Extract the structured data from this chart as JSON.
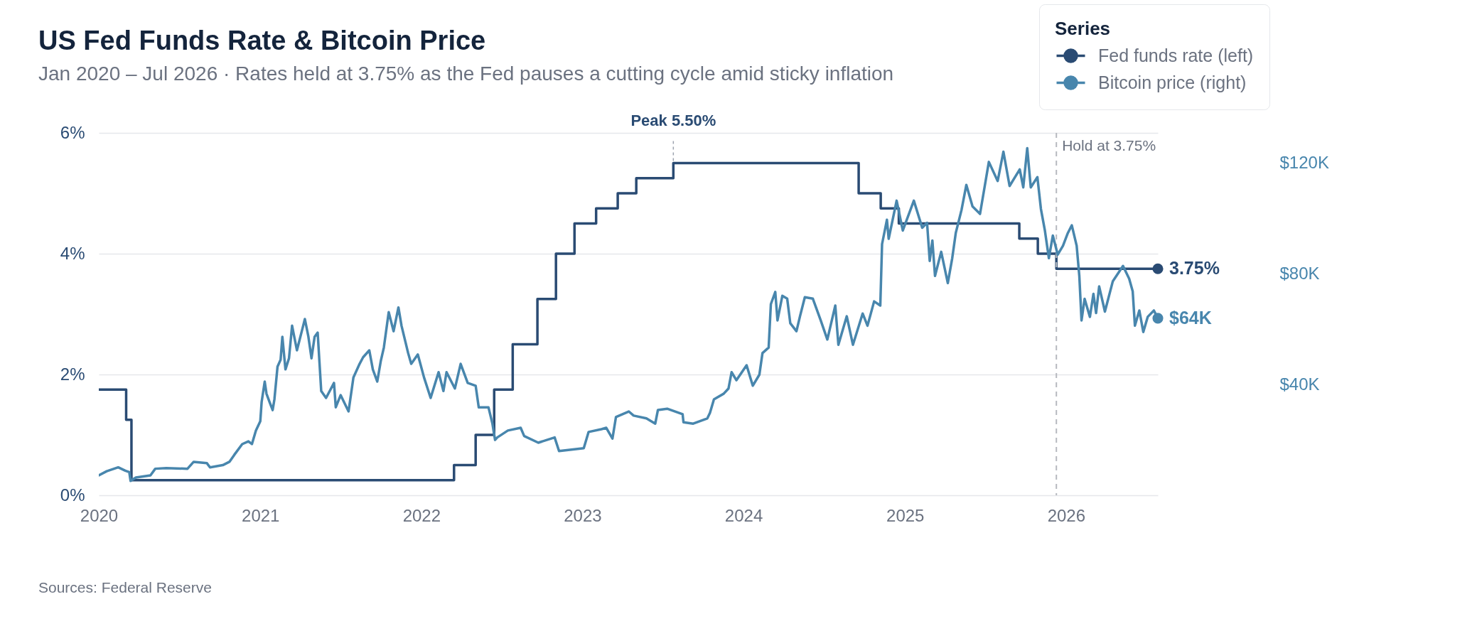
{
  "chart_data": {
    "type": "line",
    "title": "US Fed Funds Rate & Bitcoin Price",
    "subtitle": "Jan 2020 – Jul 2026 · Rates held at 3.75% as the Fed pauses a cutting cycle amid sticky inflation",
    "legend_title": "Series",
    "series": [
      {
        "name": "Fed funds rate (left)",
        "type": "step",
        "color": "#2a4b73",
        "x": [
          "2020-01-01",
          "2020-03-03",
          "2020-03-15",
          "2022-03-16",
          "2022-05-04",
          "2022-06-15",
          "2022-07-27",
          "2022-09-21",
          "2022-11-02",
          "2022-12-14",
          "2023-02-01",
          "2023-03-22",
          "2023-05-03",
          "2023-07-26",
          "2024-09-18",
          "2024-11-07",
          "2024-12-18",
          "2025-09-17",
          "2025-10-29",
          "2025-12-10",
          "2026-07-28"
        ],
        "values": [
          1.75,
          1.25,
          0.25,
          0.5,
          1.0,
          1.75,
          2.5,
          3.25,
          4.0,
          4.5,
          4.75,
          5.0,
          5.25,
          5.5,
          5.0,
          4.75,
          4.5,
          4.25,
          4.0,
          3.75,
          3.75
        ],
        "value_labels": [
          null,
          null,
          null,
          null,
          null,
          null,
          null,
          null,
          null,
          null,
          null,
          null,
          null,
          null,
          null,
          null,
          null,
          null,
          null,
          null,
          "3.75%"
        ]
      },
      {
        "name": "Bitcoin price (right)",
        "type": "line",
        "axis": "y2",
        "color": "#4886ad",
        "x": [
          "2020-01-01",
          "2020-01-19",
          "2020-02-14",
          "2020-03-01",
          "2020-03-10",
          "2020-03-13",
          "2020-03-25",
          "2020-04-27",
          "2020-05-08",
          "2020-06-02",
          "2020-07-20",
          "2020-08-03",
          "2020-09-02",
          "2020-09-09",
          "2020-10-08",
          "2020-10-23",
          "2020-11-03",
          "2020-11-21",
          "2020-12-05",
          "2020-12-13",
          "2020-12-22",
          "2021-01-01",
          "2021-01-04",
          "2021-01-11",
          "2021-01-15",
          "2021-01-22",
          "2021-01-29",
          "2021-02-02",
          "2021-02-09",
          "2021-02-16",
          "2021-02-20",
          "2021-02-27",
          "2021-03-07",
          "2021-03-14",
          "2021-03-25",
          "2021-04-05",
          "2021-04-12",
          "2021-04-20",
          "2021-04-27",
          "2021-05-04",
          "2021-05-11",
          "2021-05-19",
          "2021-05-30",
          "2021-06-17",
          "2021-06-21",
          "2021-07-02",
          "2021-07-20",
          "2021-07-31",
          "2021-08-14",
          "2021-08-22",
          "2021-09-05",
          "2021-09-13",
          "2021-09-23",
          "2021-10-01",
          "2021-10-08",
          "2021-10-19",
          "2021-10-30",
          "2021-11-10",
          "2021-11-17",
          "2021-12-02",
          "2021-12-09",
          "2021-12-24",
          "2022-01-07",
          "2022-01-22",
          "2022-02-09",
          "2022-02-20",
          "2022-02-27",
          "2022-03-18",
          "2022-03-31",
          "2022-04-16",
          "2022-05-04",
          "2022-05-11",
          "2022-06-02",
          "2022-06-11",
          "2022-06-17",
          "2022-06-22",
          "2022-07-16",
          "2022-08-14",
          "2022-08-22",
          "2022-09-23",
          "2022-10-30",
          "2022-11-09",
          "2023-01-04",
          "2023-01-15",
          "2023-02-13",
          "2023-02-24",
          "2023-03-10",
          "2023-03-18",
          "2023-04-16",
          "2023-04-27",
          "2023-05-26",
          "2023-06-15",
          "2023-06-21",
          "2023-07-12",
          "2023-08-16",
          "2023-08-18",
          "2023-09-09",
          "2023-10-11",
          "2023-10-17",
          "2023-10-26",
          "2023-11-17",
          "2023-11-28",
          "2023-12-05",
          "2023-12-16",
          "2024-01-08",
          "2024-01-22",
          "2024-02-06",
          "2024-02-13",
          "2024-02-27",
          "2024-03-03",
          "2024-03-13",
          "2024-03-18",
          "2024-03-29",
          "2024-04-09",
          "2024-04-16",
          "2024-04-30",
          "2024-05-08",
          "2024-05-19",
          "2024-06-06",
          "2024-06-24",
          "2024-07-09",
          "2024-07-27",
          "2024-08-03",
          "2024-08-22",
          "2024-09-05",
          "2024-09-27",
          "2024-10-08",
          "2024-10-23",
          "2024-11-06",
          "2024-11-10",
          "2024-11-21",
          "2024-11-25",
          "2024-12-13",
          "2024-12-27",
          "2025-01-21",
          "2025-02-09",
          "2025-02-20",
          "2025-02-26",
          "2025-03-04",
          "2025-03-10",
          "2025-03-24",
          "2025-04-08",
          "2025-04-18",
          "2025-04-26",
          "2025-05-09",
          "2025-05-20",
          "2025-06-03",
          "2025-06-20",
          "2025-07-10",
          "2025-07-30",
          "2025-08-12",
          "2025-08-26",
          "2025-09-18",
          "2025-09-26",
          "2025-10-05",
          "2025-10-13",
          "2025-10-28",
          "2025-11-05",
          "2025-11-14",
          "2025-11-23",
          "2025-12-02",
          "2025-12-13",
          "2025-12-25",
          "2026-01-05",
          "2026-01-14",
          "2026-01-25",
          "2026-01-31",
          "2026-02-05",
          "2026-02-12",
          "2026-02-24",
          "2026-03-04",
          "2026-03-10",
          "2026-03-17",
          "2026-03-30",
          "2026-04-17",
          "2026-05-10",
          "2026-05-24",
          "2026-06-01",
          "2026-06-06",
          "2026-06-16",
          "2026-06-25",
          "2026-07-05",
          "2026-07-19",
          "2026-07-28"
        ],
        "values": [
          7200,
          8700,
          10100,
          8900,
          8400,
          5200,
          6400,
          7200,
          9600,
          9800,
          9600,
          12100,
          11600,
          10100,
          10900,
          12100,
          14600,
          18500,
          19500,
          18500,
          23400,
          26800,
          33700,
          41100,
          36700,
          33700,
          30800,
          34700,
          46500,
          49000,
          57300,
          45500,
          49500,
          61300,
          52400,
          59300,
          63700,
          57300,
          49500,
          57300,
          58800,
          37700,
          35200,
          40600,
          31800,
          36200,
          30300,
          42600,
          47500,
          49900,
          52400,
          45500,
          41100,
          48500,
          53400,
          66200,
          59300,
          67900,
          61300,
          51400,
          47500,
          50900,
          42600,
          35200,
          44500,
          37700,
          44500,
          38600,
          47500,
          40600,
          39600,
          31800,
          31800,
          25900,
          20000,
          20900,
          23400,
          24400,
          21400,
          19000,
          20900,
          16000,
          17000,
          22900,
          23900,
          24400,
          20500,
          28300,
          30300,
          28800,
          27800,
          25900,
          30800,
          31300,
          29300,
          26400,
          25900,
          27800,
          29800,
          34700,
          36700,
          38600,
          44500,
          41600,
          47000,
          39600,
          43600,
          51400,
          53400,
          69100,
          73500,
          63200,
          72100,
          71100,
          62200,
          59300,
          64700,
          71600,
          71100,
          63200,
          56300,
          68600,
          54400,
          64700,
          54400,
          65700,
          61300,
          70100,
          68600,
          90800,
          99600,
          92700,
          106500,
          95700,
          106500,
          96700,
          98500,
          84700,
          92100,
          79300,
          88000,
          76700,
          85700,
          94800,
          103100,
          112200,
          104400,
          101700,
          120500,
          113600,
          124200,
          111800,
          117800,
          111300,
          125500,
          111300,
          115000,
          103500,
          95700,
          85700,
          93900,
          87000,
          90200,
          94800,
          97600,
          90200,
          79300,
          63200,
          71000,
          64500,
          72800,
          65900,
          75500,
          66400,
          77400,
          82900,
          78300,
          73700,
          61300,
          66800,
          59000,
          64500,
          66800,
          64000
        ],
        "value_labels": [
          null,
          null,
          null,
          null,
          null,
          null,
          null,
          null,
          null,
          null,
          null,
          null,
          null,
          null,
          null,
          null,
          null,
          null,
          null,
          null,
          null,
          null,
          null,
          null,
          null,
          null,
          null,
          null,
          null,
          null,
          null,
          null,
          null,
          null,
          null,
          null,
          null,
          null,
          null,
          null,
          null,
          null,
          null,
          null,
          null,
          null,
          null,
          null,
          null,
          null,
          null,
          null,
          null,
          null,
          null,
          null,
          null,
          null,
          null,
          null,
          null,
          null,
          null,
          null,
          null,
          null,
          null,
          null,
          null,
          null,
          null,
          null,
          null,
          null,
          null,
          null,
          null,
          null,
          null,
          null,
          null,
          null,
          null,
          null,
          null,
          null,
          null,
          null,
          null,
          null,
          null,
          null,
          null,
          null,
          null,
          null,
          null,
          null,
          null,
          null,
          null,
          null,
          null,
          null,
          null,
          null,
          null,
          null,
          null,
          null,
          null,
          null,
          null,
          null,
          null,
          null,
          null,
          null,
          null,
          null,
          null,
          null,
          null,
          null,
          null,
          null,
          null,
          null,
          null,
          null,
          null,
          null,
          null,
          null,
          null,
          null,
          null,
          null,
          null,
          null,
          null,
          null,
          null,
          null,
          null,
          null,
          null,
          null,
          null,
          null,
          null,
          null,
          null,
          null,
          null,
          null,
          null,
          null,
          null,
          null,
          null,
          null,
          null,
          null,
          null,
          null,
          null,
          null,
          null,
          null,
          null,
          null,
          null,
          null,
          null,
          null,
          null,
          null,
          null,
          null,
          null,
          null,
          null,
          "$64K"
        ]
      }
    ],
    "xlim": [
      "2020-01-01",
      "2026-07-28"
    ],
    "xticks": [
      "2020",
      "2021",
      "2022",
      "2023",
      "2024",
      "2025",
      "2026"
    ],
    "ylim": [
      0,
      6
    ],
    "yticks": [
      {
        "value": 0,
        "label": "0%"
      },
      {
        "value": 2,
        "label": "2%"
      },
      {
        "value": 4,
        "label": "4%"
      },
      {
        "value": 6,
        "label": "6%"
      }
    ],
    "y2lim": [
      0,
      131000
    ],
    "y2ticks": [
      {
        "value": 40000,
        "label": "$40K"
      },
      {
        "value": 80000,
        "label": "$80K"
      },
      {
        "value": 120000,
        "label": "$120K"
      }
    ],
    "grid": "y",
    "legend": "top right",
    "ref_lines": [
      {
        "axis": "x",
        "value": "2025-12-10",
        "label": "Hold at 3.75%",
        "color": "#b6b9bf",
        "line_style": "dashed"
      }
    ],
    "annotations": [
      {
        "text": "Peak 5.50%",
        "x": "2023-07-26",
        "y": 5.5
      },
      "Sources: Federal Reserve"
    ]
  }
}
